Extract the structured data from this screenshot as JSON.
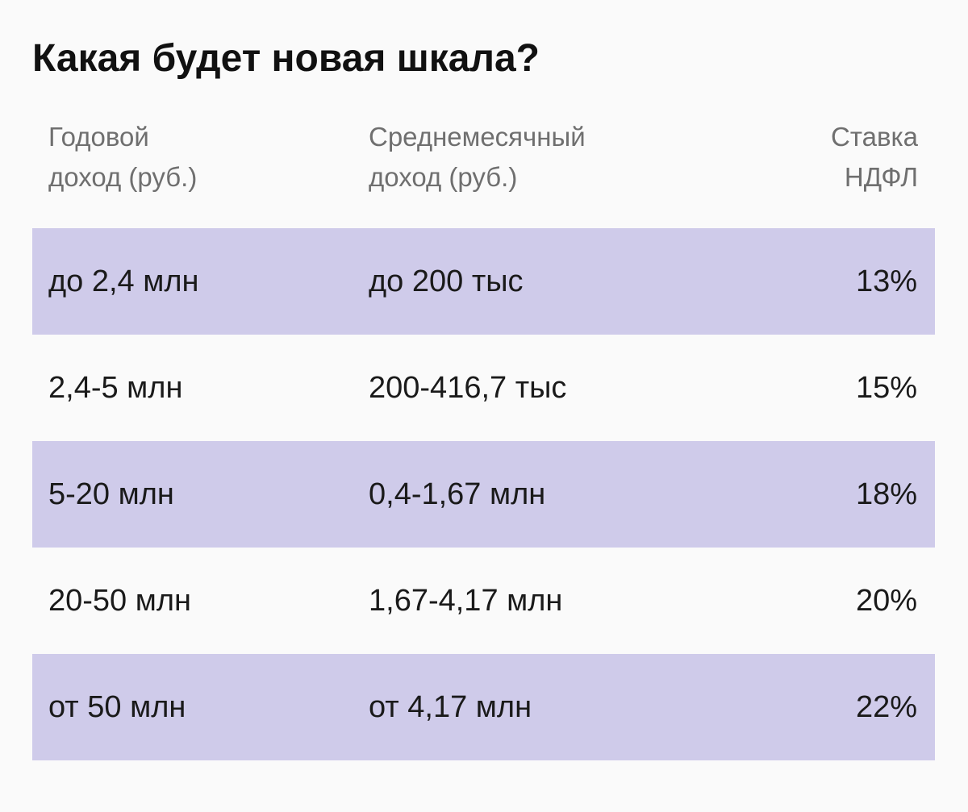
{
  "title": "Какая будет новая шкала?",
  "columns": [
    {
      "line1": "Годовой",
      "line2": "доход (руб.)"
    },
    {
      "line1": "Среднемесячный",
      "line2": "доход (руб.)"
    },
    {
      "line1": "Ставка",
      "line2": "НДФЛ"
    }
  ],
  "rows": [
    {
      "annual": "до 2,4 млн",
      "monthly": "до 200 тыс",
      "rate": "13%"
    },
    {
      "annual": "2,4-5 млн",
      "monthly": "200-416,7 тыс",
      "rate": "15%"
    },
    {
      "annual": "5-20 млн",
      "monthly": "0,4-1,67 млн",
      "rate": "18%"
    },
    {
      "annual": "20-50 млн",
      "monthly": "1,67-4,17 млн",
      "rate": "20%"
    },
    {
      "annual": "от 50 млн",
      "monthly": "от 4,17 млн",
      "rate": "22%"
    }
  ],
  "colors": {
    "background": "#fafafa",
    "row_shade": "#cfcbea",
    "header_text": "#6f6f6f",
    "body_text": "#1a1a1a",
    "title_text": "#111111"
  }
}
